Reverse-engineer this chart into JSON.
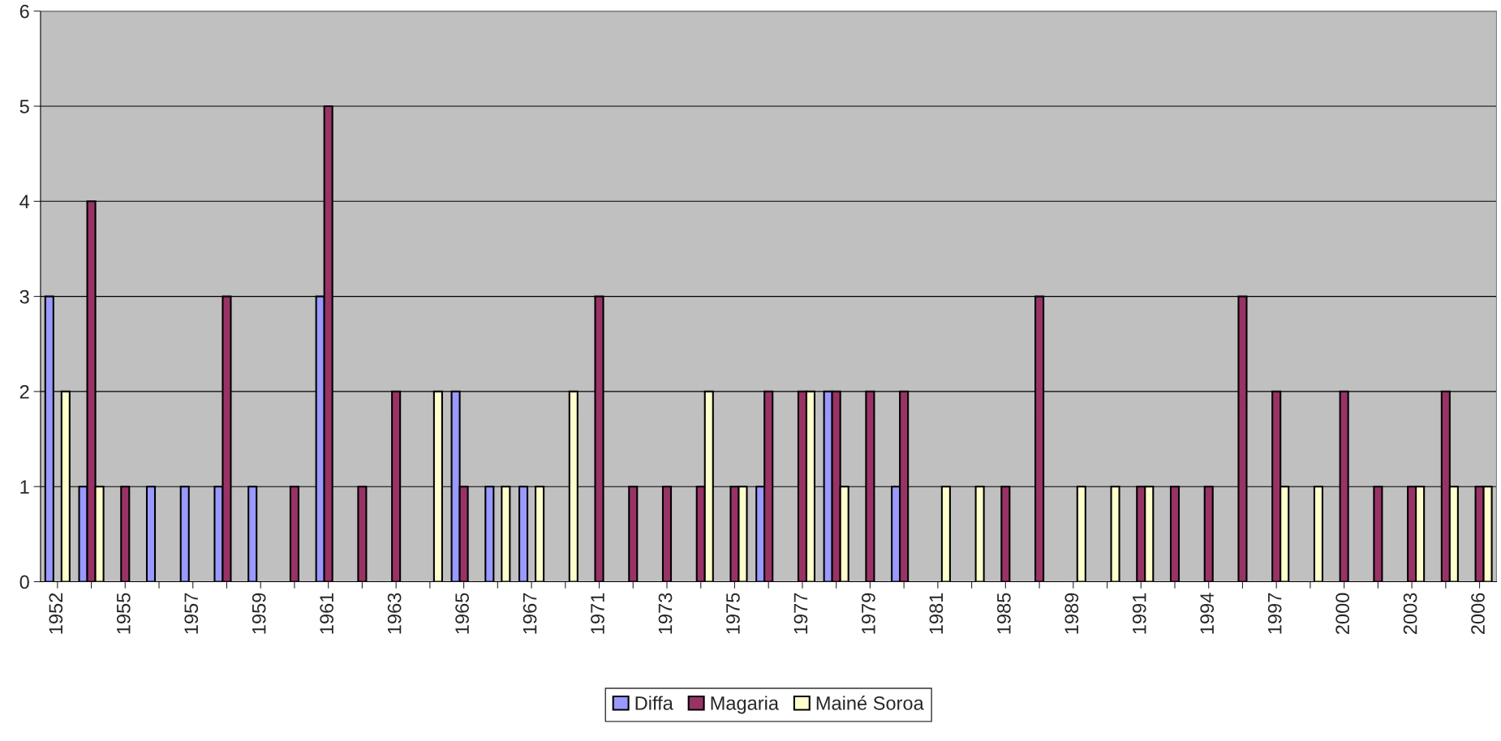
{
  "chart_data": {
    "type": "bar",
    "categories": [
      "1952",
      null,
      "1955",
      null,
      "1957",
      null,
      "1959",
      null,
      "1961",
      null,
      "1963",
      null,
      "1965",
      null,
      "1967",
      null,
      "1971",
      null,
      "1973",
      null,
      "1975",
      null,
      "1977",
      null,
      "1979",
      null,
      "1981",
      null,
      "1985",
      null,
      "1989",
      null,
      "1991",
      null,
      "1994",
      null,
      "1997",
      null,
      "2000",
      null,
      "2003",
      null,
      "2006"
    ],
    "series": [
      {
        "name": "Diffa",
        "color": "#9999ff",
        "values": [
          3,
          1,
          null,
          1,
          1,
          1,
          1,
          null,
          3,
          null,
          null,
          null,
          2,
          1,
          1,
          null,
          null,
          null,
          null,
          null,
          null,
          1,
          null,
          2,
          null,
          1,
          null,
          null,
          null,
          null,
          null,
          null,
          null,
          null,
          null,
          null,
          null,
          null,
          null,
          null,
          null,
          null,
          null
        ]
      },
      {
        "name": "Magaria",
        "color": "#993366",
        "values": [
          null,
          4,
          1,
          null,
          null,
          3,
          null,
          1,
          5,
          1,
          2,
          null,
          1,
          null,
          null,
          null,
          3,
          1,
          1,
          1,
          1,
          2,
          2,
          2,
          2,
          2,
          null,
          null,
          1,
          3,
          null,
          null,
          1,
          1,
          1,
          3,
          2,
          null,
          2,
          1,
          1,
          2,
          1
        ]
      },
      {
        "name": "Mainé Soroa",
        "color": "#ffffcc",
        "values": [
          2,
          1,
          null,
          null,
          null,
          null,
          null,
          null,
          null,
          null,
          null,
          2,
          null,
          1,
          1,
          2,
          null,
          null,
          null,
          2,
          1,
          null,
          2,
          1,
          null,
          null,
          1,
          1,
          null,
          null,
          1,
          1,
          1,
          null,
          null,
          null,
          1,
          1,
          null,
          null,
          1,
          1,
          1
        ]
      }
    ],
    "ylim": [
      0,
      6
    ],
    "yticks": [
      0,
      1,
      2,
      3,
      4,
      5,
      6
    ],
    "grid": "y",
    "legend": "bottom"
  }
}
